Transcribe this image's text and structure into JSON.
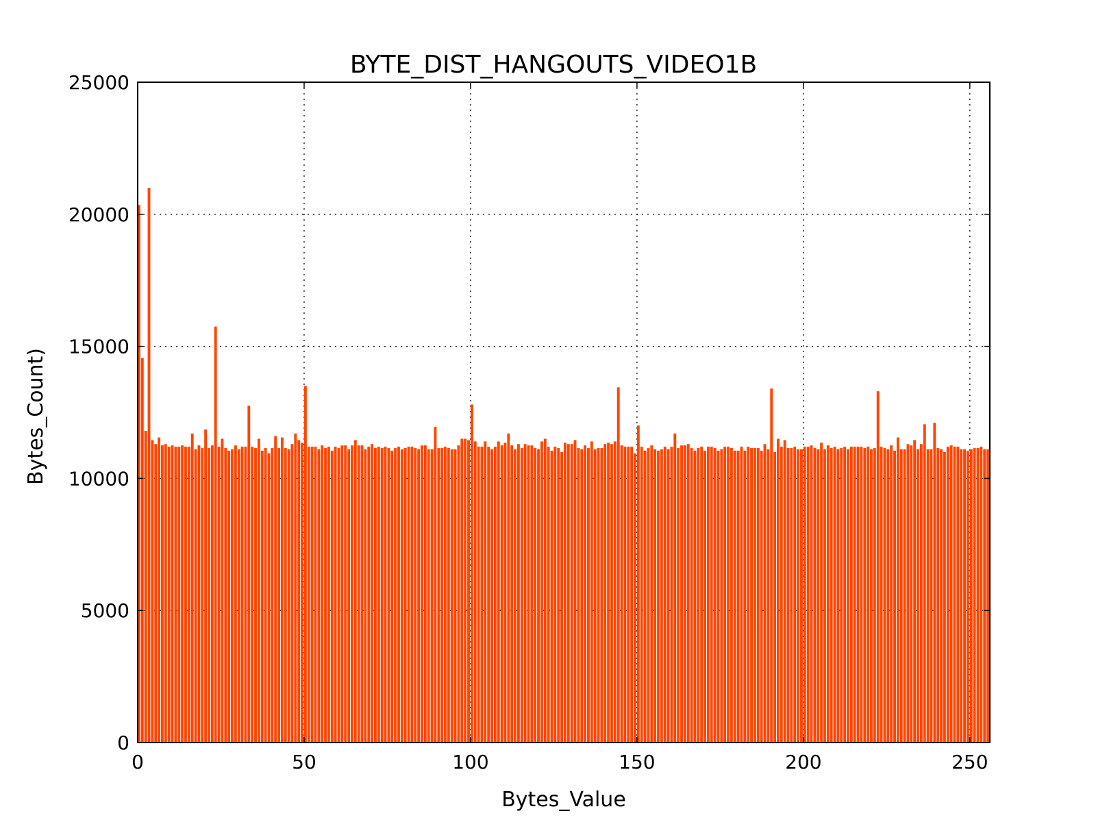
{
  "chart_data": {
    "type": "bar",
    "title": "BYTE_DIST_HANGOUTS_VIDEO1B",
    "xlabel": "Bytes_Value",
    "ylabel": "Bytes_Count)",
    "xlim": [
      0,
      256
    ],
    "ylim": [
      0,
      25000
    ],
    "xticks": [
      0,
      50,
      100,
      150,
      200,
      250
    ],
    "xtick_labels": [
      "0",
      "50",
      "100",
      "150",
      "200",
      "250"
    ],
    "yticks": [
      0,
      5000,
      10000,
      15000,
      20000,
      25000
    ],
    "ytick_labels": [
      "0",
      "5000",
      "10000",
      "15000",
      "20000",
      "25000"
    ],
    "grid": true,
    "bar_color": "#ff4500",
    "x": [
      0,
      1,
      2,
      3,
      4,
      5,
      6,
      7,
      8,
      9,
      10,
      11,
      12,
      13,
      14,
      15,
      16,
      17,
      18,
      19,
      20,
      21,
      22,
      23,
      24,
      25,
      26,
      27,
      28,
      29,
      30,
      31,
      32,
      33,
      34,
      35,
      36,
      37,
      38,
      39,
      40,
      41,
      42,
      43,
      44,
      45,
      46,
      47,
      48,
      49,
      50,
      51,
      52,
      53,
      54,
      55,
      56,
      57,
      58,
      59,
      60,
      61,
      62,
      63,
      64,
      65,
      66,
      67,
      68,
      69,
      70,
      71,
      72,
      73,
      74,
      75,
      76,
      77,
      78,
      79,
      80,
      81,
      82,
      83,
      84,
      85,
      86,
      87,
      88,
      89,
      90,
      91,
      92,
      93,
      94,
      95,
      96,
      97,
      98,
      99,
      100,
      101,
      102,
      103,
      104,
      105,
      106,
      107,
      108,
      109,
      110,
      111,
      112,
      113,
      114,
      115,
      116,
      117,
      118,
      119,
      120,
      121,
      122,
      123,
      124,
      125,
      126,
      127,
      128,
      129,
      130,
      131,
      132,
      133,
      134,
      135,
      136,
      137,
      138,
      139,
      140,
      141,
      142,
      143,
      144,
      145,
      146,
      147,
      148,
      149,
      150,
      151,
      152,
      153,
      154,
      155,
      156,
      157,
      158,
      159,
      160,
      161,
      162,
      163,
      164,
      165,
      166,
      167,
      168,
      169,
      170,
      171,
      172,
      173,
      174,
      175,
      176,
      177,
      178,
      179,
      180,
      181,
      182,
      183,
      184,
      185,
      186,
      187,
      188,
      189,
      190,
      191,
      192,
      193,
      194,
      195,
      196,
      197,
      198,
      199,
      200,
      201,
      202,
      203,
      204,
      205,
      206,
      207,
      208,
      209,
      210,
      211,
      212,
      213,
      214,
      215,
      216,
      217,
      218,
      219,
      220,
      221,
      222,
      223,
      224,
      225,
      226,
      227,
      228,
      229,
      230,
      231,
      232,
      233,
      234,
      235,
      236,
      237,
      238,
      239,
      240,
      241,
      242,
      243,
      244,
      245,
      246,
      247,
      248,
      249,
      250,
      251,
      252,
      253,
      254,
      255
    ],
    "values": [
      20350,
      14550,
      11800,
      21000,
      11450,
      11300,
      11550,
      11250,
      11300,
      11200,
      11250,
      11200,
      11200,
      11250,
      11200,
      11200,
      11700,
      11100,
      11250,
      11150,
      11850,
      11150,
      11250,
      15750,
      11200,
      11500,
      11150,
      11050,
      11100,
      11250,
      11100,
      11200,
      11200,
      12750,
      11200,
      11150,
      11500,
      11050,
      11150,
      10950,
      11150,
      11600,
      11150,
      11550,
      11150,
      11100,
      11300,
      11700,
      11450,
      11350,
      13500,
      11200,
      11200,
      11200,
      11100,
      11250,
      11150,
      11200,
      11050,
      11200,
      11150,
      11250,
      11250,
      11100,
      11250,
      11450,
      11250,
      11250,
      11100,
      11200,
      11300,
      11150,
      11200,
      11150,
      11200,
      11150,
      11050,
      11150,
      11200,
      11100,
      11150,
      11200,
      11200,
      11150,
      11100,
      11250,
      11250,
      11100,
      11100,
      11950,
      11150,
      11150,
      11200,
      11150,
      11100,
      11100,
      11250,
      11500,
      11500,
      11450,
      12800,
      11400,
      11200,
      11200,
      11400,
      11200,
      11100,
      11200,
      11400,
      11250,
      11350,
      11700,
      11250,
      11100,
      11300,
      11150,
      11300,
      11250,
      11250,
      11150,
      11100,
      11400,
      11500,
      11200,
      11050,
      11200,
      11150,
      11000,
      11350,
      11300,
      11300,
      11450,
      11150,
      11100,
      11250,
      11150,
      11400,
      11100,
      11150,
      11150,
      11300,
      11350,
      11300,
      11400,
      13450,
      11250,
      11200,
      11200,
      11200,
      10950,
      12000,
      11200,
      11050,
      11150,
      11250,
      11100,
      11050,
      11100,
      11200,
      11100,
      11200,
      11700,
      11150,
      11250,
      11250,
      11300,
      11150,
      11050,
      11150,
      11200,
      11050,
      11200,
      11200,
      11150,
      11050,
      11100,
      11200,
      11200,
      11150,
      11050,
      11050,
      11200,
      11050,
      11200,
      11150,
      11150,
      11150,
      11050,
      11300,
      11100,
      13400,
      11000,
      11500,
      11200,
      11450,
      11150,
      11150,
      11200,
      11100,
      11100,
      11200,
      11200,
      11250,
      11150,
      11100,
      11350,
      11100,
      11250,
      11150,
      11200,
      11100,
      11150,
      11200,
      11100,
      11200,
      11200,
      11200,
      11200,
      11150,
      11200,
      11100,
      11150,
      13300,
      11200,
      11150,
      11100,
      11250,
      11050,
      11550,
      11100,
      11100,
      11300,
      11250,
      11450,
      11100,
      11300,
      12050,
      11100,
      11100,
      12100,
      11150,
      11100,
      11000,
      11200,
      11250,
      11200,
      11200,
      11100,
      11100,
      11050,
      11100,
      11150,
      11150,
      11200,
      11100,
      11100
    ]
  }
}
